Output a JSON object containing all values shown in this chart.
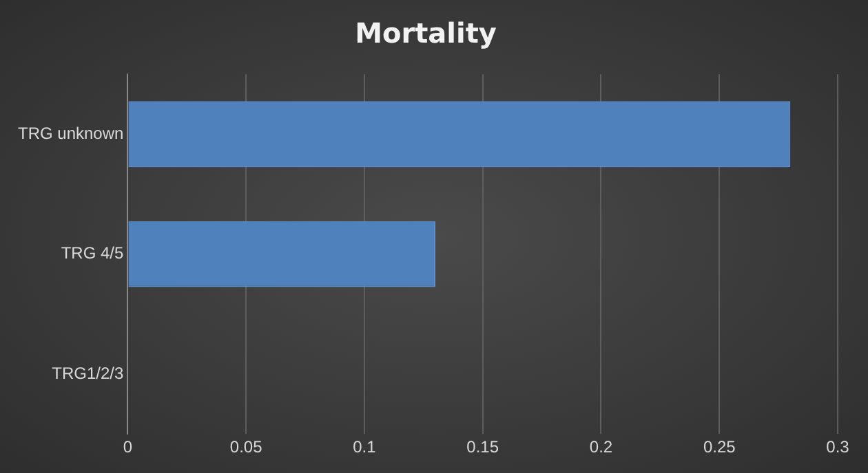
{
  "chart_data": {
    "type": "bar",
    "orientation": "horizontal",
    "title": "Mortality",
    "categories": [
      "TRG unknown",
      "TRG 4/5",
      "TRG1/2/3"
    ],
    "values": [
      0.28,
      0.13,
      0
    ],
    "color": "#4f81bd",
    "xlim": [
      0,
      0.3
    ],
    "xticks": [
      0,
      0.05,
      0.1,
      0.15,
      0.2,
      0.25,
      0.3
    ],
    "grid": "x",
    "legend": false
  }
}
